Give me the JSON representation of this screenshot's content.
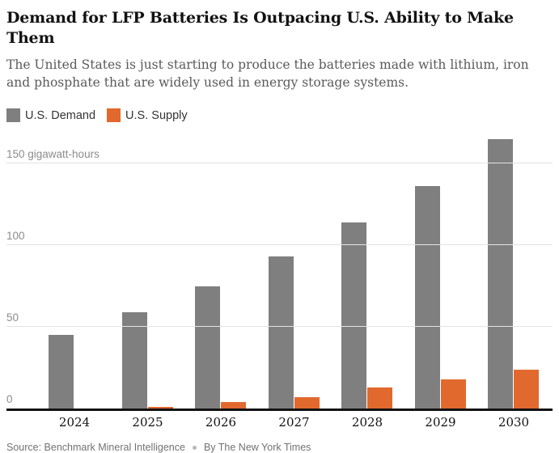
{
  "header": {
    "title": "Demand for LFP Batteries Is Outpacing U.S. Ability to Make Them",
    "subtitle": "The United States is just starting to produce the batteries made with lithium, iron and phosphate that are widely used in energy storage systems."
  },
  "chart_data": {
    "type": "bar",
    "title": "Demand for LFP Batteries Is Outpacing U.S. Ability to Make Them",
    "unit": "gigawatt-hours",
    "categories": [
      "2024",
      "2025",
      "2026",
      "2027",
      "2028",
      "2029",
      "2030"
    ],
    "series": [
      {
        "name": "U.S. Demand",
        "color": "#7f7f7f",
        "values": [
          45,
          59,
          75,
          93,
          114,
          136,
          165
        ]
      },
      {
        "name": "U.S. Supply",
        "color": "#e2692e",
        "values": [
          0,
          1,
          4,
          7,
          13,
          18,
          24
        ]
      }
    ],
    "yticks": [
      {
        "value": 150,
        "label": "150 gigawatt-hours"
      },
      {
        "value": 100,
        "label": "100"
      },
      {
        "value": 50,
        "label": "50"
      },
      {
        "value": 0,
        "label": "0"
      }
    ],
    "ylim": [
      0,
      165
    ],
    "grid": true,
    "legend_position": "top-left"
  },
  "footer": {
    "source": "Source: Benchmark Mineral Intelligence",
    "byline": "By The New York Times"
  }
}
